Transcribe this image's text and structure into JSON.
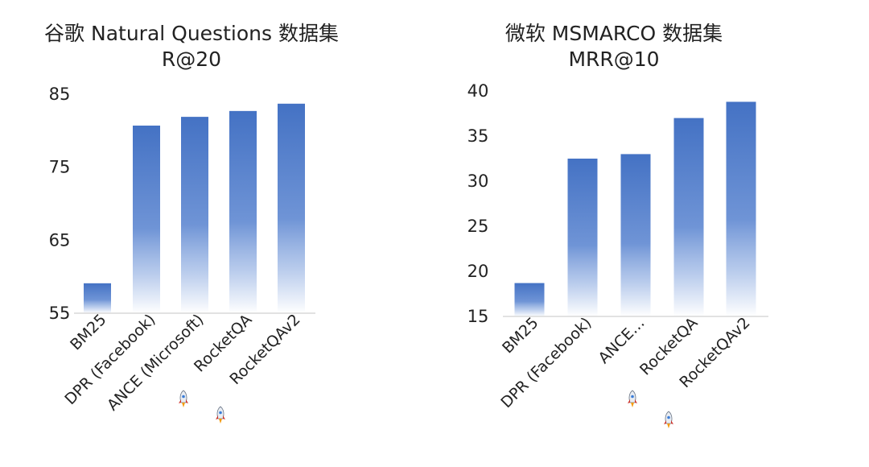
{
  "chart_data": [
    {
      "type": "bar",
      "title": "谷歌 Natural Questions 数据集",
      "subtitle": "R@20",
      "categories": [
        "BM25",
        "DPR (Facebook)",
        "ANCE (Microsoft)",
        "RocketQA",
        "RocketQAv2"
      ],
      "category_icons": [
        "",
        "",
        "",
        "rocket-icon",
        "rocket-icon"
      ],
      "values": [
        59.1,
        80.7,
        81.9,
        82.7,
        83.7
      ],
      "yticks": [
        "85",
        "75",
        "65",
        "55"
      ],
      "ylim": [
        55,
        85
      ],
      "grid": false,
      "bar_color": "#4472c4"
    },
    {
      "type": "bar",
      "title": "微软 MSMARCO 数据集",
      "subtitle": "MRR@10",
      "categories": [
        "BM25",
        "DPR (Facebook)",
        "ANCE…",
        "RocketQA",
        "RocketQAv2"
      ],
      "category_icons": [
        "",
        "",
        "",
        "rocket-icon",
        "rocket-icon"
      ],
      "values": [
        18.7,
        32.5,
        33.0,
        37.0,
        38.8
      ],
      "yticks": [
        "40",
        "35",
        "30",
        "25",
        "20",
        "15"
      ],
      "ylim": [
        15,
        40
      ],
      "grid": false,
      "bar_color": "#4472c4"
    }
  ]
}
